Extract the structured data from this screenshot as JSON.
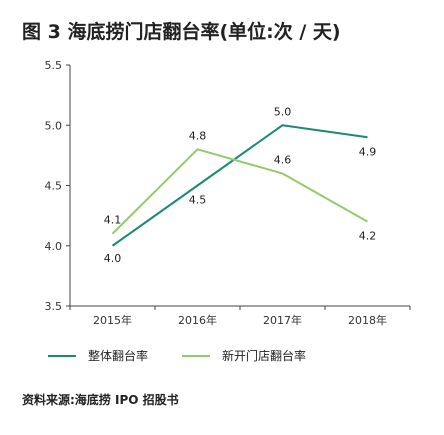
{
  "title": "图 3 海底捞门店翻台率(单位:次 / 天)",
  "source": "资料来源:海底捞 IPO 招股书",
  "chart_data": {
    "type": "line",
    "categories": [
      "2015年",
      "2016年",
      "2017年",
      "2018年"
    ],
    "ylim": [
      3.5,
      5.5
    ],
    "yticks": [
      "5.5",
      "5.0",
      "4.5",
      "4.0",
      "3.5"
    ],
    "ytick_values": [
      5.5,
      5.0,
      4.5,
      4.0,
      3.5
    ],
    "grid": false,
    "legend_position": "bottom",
    "series": [
      {
        "name": "整体翻台率",
        "color": "#1c8a73",
        "values": [
          4.0,
          4.5,
          5.0,
          4.9
        ],
        "labels": [
          "4.0",
          "4.5",
          "5.0",
          "4.9"
        ]
      },
      {
        "name": "新开门店翻台率",
        "color": "#96c96e",
        "values": [
          4.1,
          4.8,
          4.6,
          4.2
        ],
        "labels": [
          "4.1",
          "4.8",
          "4.6",
          "4.2"
        ]
      }
    ]
  }
}
